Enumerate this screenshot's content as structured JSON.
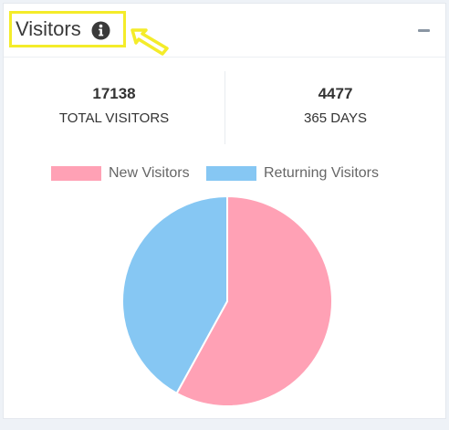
{
  "widget": {
    "title": "Visitors",
    "info_icon": "info-circle-icon",
    "pointer_icon": "yellow-arrow-icon",
    "collapse_icon": "minus-icon",
    "highlight_color": "#f4ec2a"
  },
  "stats": [
    {
      "value": "17138",
      "label": "TOTAL VISITORS"
    },
    {
      "value": "4477",
      "label": "365 DAYS"
    }
  ],
  "chart_data": {
    "type": "pie",
    "title": "",
    "legend_position": "top",
    "slices": [
      {
        "label": "New Visitors",
        "value": 58,
        "color": "#ffa1b5"
      },
      {
        "label": "Returning Visitors",
        "value": 42,
        "color": "#86c7f3"
      }
    ]
  }
}
